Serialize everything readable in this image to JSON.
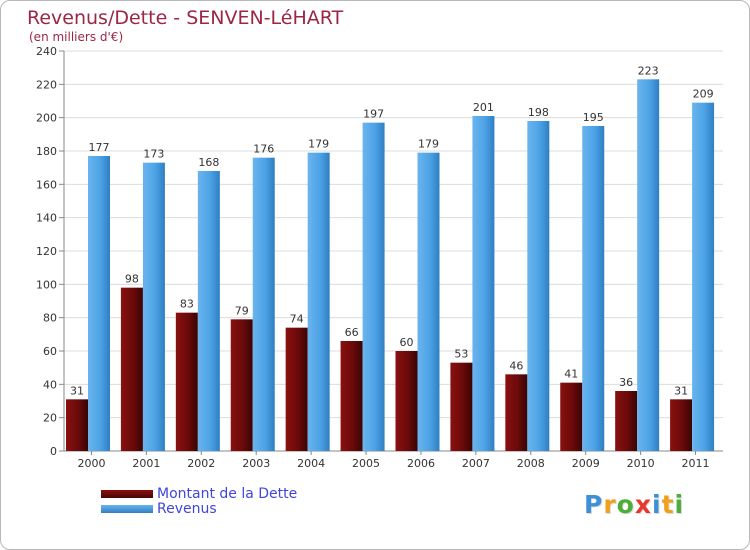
{
  "chart_data": {
    "type": "bar",
    "title": "Revenus/Dette - SENVEN-LéHART",
    "subtitle": "(en milliers d'€)",
    "categories": [
      "2000",
      "2001",
      "2002",
      "2003",
      "2004",
      "2005",
      "2006",
      "2007",
      "2008",
      "2009",
      "2010",
      "2011"
    ],
    "series": [
      {
        "name": "Montant de la Dette",
        "color": "#6b0a0a",
        "values": [
          31,
          98,
          83,
          79,
          74,
          66,
          60,
          53,
          46,
          41,
          36,
          31
        ]
      },
      {
        "name": "Revenus",
        "color": "#4da3e6",
        "values": [
          177,
          173,
          168,
          176,
          179,
          197,
          179,
          201,
          198,
          195,
          223,
          209
        ]
      }
    ],
    "ylim": [
      0,
      240
    ],
    "yticks": [
      0,
      20,
      40,
      60,
      80,
      100,
      120,
      140,
      160,
      180,
      200,
      220,
      240
    ],
    "grid": true,
    "legend": "bottom-left",
    "data_labels": true
  },
  "logo": {
    "letters": [
      {
        "ch": "P",
        "color": "#3d8fd6"
      },
      {
        "ch": "r",
        "color": "#f0a01c"
      },
      {
        "ch": "o",
        "color": "#4fae3a"
      },
      {
        "ch": "x",
        "color": "#e8382d"
      },
      {
        "ch": "i",
        "color": "#3d8fd6"
      },
      {
        "ch": "t",
        "color": "#f0a01c"
      },
      {
        "ch": "i",
        "color": "#4fae3a"
      }
    ]
  }
}
